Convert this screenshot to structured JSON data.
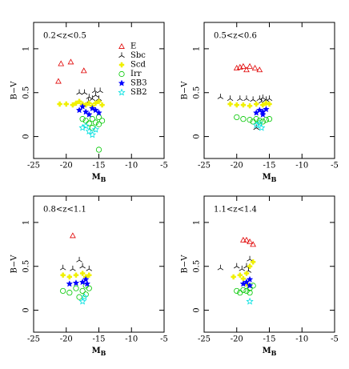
{
  "chart_data": [
    {
      "type": "scatter",
      "title": "0.2<z<0.5",
      "xlabel": "M",
      "xlabel_sub": "B",
      "ylabel": "B−V",
      "xlim": [
        -25,
        -5
      ],
      "ylim": [
        -0.25,
        1.3
      ],
      "xticks": [
        -25,
        -20,
        -15,
        -10,
        -5
      ],
      "yticks": [
        0,
        0.5,
        1
      ],
      "legend": true,
      "series": [
        {
          "name": "E",
          "color": "#e00000",
          "marker": "triangle",
          "x": [
            -20.8,
            -19.3,
            -21.2,
            -17.3
          ],
          "values": [
            0.83,
            0.85,
            0.63,
            0.75
          ]
        },
        {
          "name": "Sbc",
          "color": "#000000",
          "marker": "tristar",
          "x": [
            -18,
            -17.2,
            -16.5,
            -16,
            -15.5,
            -15,
            -15.6,
            -16.6,
            -14.8
          ],
          "values": [
            0.5,
            0.5,
            0.45,
            0.43,
            0.47,
            0.43,
            0.52,
            0.4,
            0.52
          ]
        },
        {
          "name": "Scd",
          "color": "#f0f000",
          "marker": "cross",
          "x": [
            -21,
            -20,
            -19,
            -18.5,
            -18,
            -17.5,
            -17,
            -16.5,
            -16,
            -15.5,
            -15,
            -14.5
          ],
          "values": [
            0.37,
            0.37,
            0.36,
            0.38,
            0.4,
            0.37,
            0.36,
            0.38,
            0.35,
            0.38,
            0.4,
            0.36
          ]
        },
        {
          "name": "Irr",
          "color": "#00c800",
          "marker": "circle",
          "x": [
            -17,
            -16.5,
            -16,
            -15.5,
            -15,
            -16,
            -17.5,
            -15,
            -14.5,
            -15
          ],
          "values": [
            0.18,
            0.15,
            0.2,
            0.16,
            0.14,
            0.1,
            0.2,
            0.22,
            0.18,
            -0.15
          ]
        },
        {
          "name": "SB3",
          "color": "#0000ff",
          "marker": "star",
          "x": [
            -18,
            -17,
            -16,
            -15.5,
            -17.5,
            -16.5,
            -15
          ],
          "values": [
            0.3,
            0.28,
            0.32,
            0.3,
            0.34,
            0.25,
            0.27
          ]
        },
        {
          "name": "SB2",
          "color": "#00e0e0",
          "marker": "star",
          "x": [
            -17.5,
            -16.5,
            -16,
            -15.5,
            -17
          ],
          "values": [
            0.1,
            0.06,
            0.02,
            0.08,
            0.12
          ]
        }
      ]
    },
    {
      "type": "scatter",
      "title": "0.5<z<0.6",
      "xlabel": "M",
      "xlabel_sub": "B",
      "ylabel": "B−V",
      "xlim": [
        -25,
        -5
      ],
      "ylim": [
        -0.25,
        1.3
      ],
      "xticks": [
        -25,
        -20,
        -15,
        -10,
        -5
      ],
      "yticks": [
        0,
        0.5,
        1
      ],
      "legend": false,
      "series": [
        {
          "name": "E",
          "color": "#e00000",
          "marker": "triangle",
          "x": [
            -20,
            -19.5,
            -19,
            -18,
            -17.2,
            -16.5,
            -18.5
          ],
          "values": [
            0.78,
            0.79,
            0.8,
            0.8,
            0.78,
            0.76,
            0.76
          ]
        },
        {
          "name": "Sbc",
          "color": "#000000",
          "marker": "tristar",
          "x": [
            -22.5,
            -21,
            -19.5,
            -18.5,
            -17.5,
            -16.5,
            -16,
            -15.5,
            -16.2,
            -15,
            -17
          ],
          "values": [
            0.45,
            0.43,
            0.43,
            0.43,
            0.42,
            0.43,
            0.44,
            0.42,
            0.4,
            0.43,
            0.1
          ]
        },
        {
          "name": "Scd",
          "color": "#f0f000",
          "marker": "cross",
          "x": [
            -21,
            -20,
            -19,
            -18,
            -17,
            -16,
            -15.5,
            -15
          ],
          "values": [
            0.37,
            0.36,
            0.36,
            0.35,
            0.37,
            0.36,
            0.38,
            0.37
          ]
        },
        {
          "name": "Irr",
          "color": "#00c800",
          "marker": "circle",
          "x": [
            -20,
            -19,
            -18,
            -17,
            -16.5,
            -16,
            -15.5,
            -15,
            -17.5
          ],
          "values": [
            0.22,
            0.2,
            0.19,
            0.2,
            0.18,
            0.17,
            0.19,
            0.2,
            0.17
          ]
        },
        {
          "name": "SB3",
          "color": "#0000ff",
          "marker": "star",
          "x": [
            -17,
            -16.5,
            -16,
            -15.5,
            -16
          ],
          "values": [
            0.27,
            0.3,
            0.28,
            0.31,
            0.25
          ]
        },
        {
          "name": "SB2",
          "color": "#00e0e0",
          "marker": "star",
          "x": [
            -17,
            -16.2,
            -16.5
          ],
          "values": [
            0.13,
            0.1,
            0.15
          ]
        }
      ]
    },
    {
      "type": "scatter",
      "title": "0.8<z<1.1",
      "xlabel": "M",
      "xlabel_sub": "B",
      "ylabel": "B−V",
      "xlim": [
        -25,
        -5
      ],
      "ylim": [
        -0.25,
        1.3
      ],
      "xticks": [
        -25,
        -20,
        -15,
        -10,
        -5
      ],
      "yticks": [
        0,
        0.5,
        1
      ],
      "legend": false,
      "series": [
        {
          "name": "E",
          "color": "#e00000",
          "marker": "triangle",
          "x": [
            -19
          ],
          "values": [
            0.85
          ]
        },
        {
          "name": "Sbc",
          "color": "#000000",
          "marker": "tristar",
          "x": [
            -20.5,
            -18,
            -17.5,
            -16.5,
            -19
          ],
          "values": [
            0.48,
            0.57,
            0.5,
            0.47,
            0.47
          ]
        },
        {
          "name": "Scd",
          "color": "#f0f000",
          "marker": "cross",
          "x": [
            -20.5,
            -19.5,
            -18.5,
            -17.5,
            -17,
            -16.5
          ],
          "values": [
            0.4,
            0.38,
            0.4,
            0.42,
            0.38,
            0.4
          ]
        },
        {
          "name": "Irr",
          "color": "#00c800",
          "marker": "circle",
          "x": [
            -20.5,
            -19.5,
            -18.5,
            -17.5,
            -17,
            -16.5,
            -17,
            -18
          ],
          "values": [
            0.22,
            0.2,
            0.25,
            0.22,
            0.28,
            0.25,
            0.18,
            0.15
          ]
        },
        {
          "name": "SB3",
          "color": "#0000ff",
          "marker": "star",
          "x": [
            -19.5,
            -18.5,
            -17.5,
            -17,
            -16.8
          ],
          "values": [
            0.3,
            0.31,
            0.32,
            0.35,
            0.3
          ]
        },
        {
          "name": "SB2",
          "color": "#00e0e0",
          "marker": "star",
          "x": [
            -17.5,
            -17.2
          ],
          "values": [
            0.1,
            0.15
          ]
        }
      ]
    },
    {
      "type": "scatter",
      "title": "1.1<z<1.4",
      "xlabel": "M",
      "xlabel_sub": "B",
      "ylabel": "B−V",
      "xlim": [
        -25,
        -5
      ],
      "ylim": [
        -0.25,
        1.3
      ],
      "xticks": [
        -25,
        -20,
        -15,
        -10,
        -5
      ],
      "yticks": [
        0,
        0.5,
        1
      ],
      "legend": false,
      "series": [
        {
          "name": "E",
          "color": "#e00000",
          "marker": "triangle",
          "x": [
            -19,
            -18.5,
            -18,
            -17.5
          ],
          "values": [
            0.8,
            0.8,
            0.78,
            0.75
          ]
        },
        {
          "name": "Sbc",
          "color": "#000000",
          "marker": "tristar",
          "x": [
            -22.5,
            -20,
            -19.2,
            -18.5,
            -18,
            -18.2
          ],
          "values": [
            0.48,
            0.5,
            0.47,
            0.5,
            0.58,
            0.45
          ]
        },
        {
          "name": "Scd",
          "color": "#f0f000",
          "marker": "cross",
          "x": [
            -20.5,
            -19.5,
            -19,
            -18.5,
            -18,
            -17.5,
            -18.5
          ],
          "values": [
            0.38,
            0.4,
            0.36,
            0.42,
            0.5,
            0.55,
            0.3
          ]
        },
        {
          "name": "Irr",
          "color": "#00c800",
          "marker": "circle",
          "x": [
            -20,
            -19.5,
            -19,
            -18.5,
            -18,
            -17.5,
            -18
          ],
          "values": [
            0.22,
            0.2,
            0.23,
            0.22,
            0.25,
            0.28,
            0.2
          ]
        },
        {
          "name": "SB3",
          "color": "#0000ff",
          "marker": "star",
          "x": [
            -19,
            -18.5,
            -18,
            -18
          ],
          "values": [
            0.3,
            0.32,
            0.35,
            0.28
          ]
        },
        {
          "name": "SB2",
          "color": "#00e0e0",
          "marker": "star",
          "x": [
            -18
          ],
          "values": [
            0.1
          ]
        }
      ]
    }
  ]
}
